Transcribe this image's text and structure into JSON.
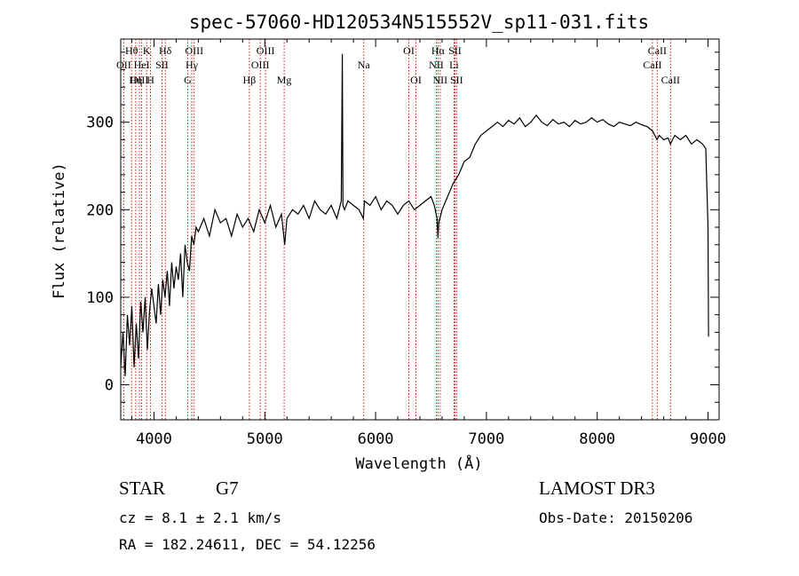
{
  "chart_data": {
    "type": "line",
    "title": "spec-57060-HD120534N515552V_sp11-031.fits",
    "xlabel": "Wavelength (Å)",
    "ylabel": "Flux (relative)",
    "xlim": [
      3700,
      9100
    ],
    "ylim": [
      -40,
      395
    ],
    "xticks": [
      4000,
      5000,
      6000,
      7000,
      8000,
      9000
    ],
    "yticks": [
      0,
      100,
      200,
      300
    ],
    "series": [
      {
        "name": "flux",
        "x": [
          3700,
          3720,
          3740,
          3760,
          3780,
          3800,
          3820,
          3840,
          3860,
          3880,
          3900,
          3920,
          3940,
          3960,
          3980,
          4000,
          4020,
          4040,
          4060,
          4080,
          4100,
          4120,
          4140,
          4160,
          4180,
          4200,
          4220,
          4240,
          4260,
          4280,
          4300,
          4320,
          4340,
          4360,
          4380,
          4400,
          4450,
          4500,
          4550,
          4600,
          4650,
          4700,
          4750,
          4800,
          4850,
          4900,
          4950,
          5000,
          5050,
          5100,
          5150,
          5180,
          5200,
          5250,
          5300,
          5350,
          5400,
          5450,
          5500,
          5550,
          5600,
          5650,
          5690,
          5700,
          5705,
          5720,
          5750,
          5800,
          5850,
          5890,
          5900,
          5950,
          6000,
          6050,
          6100,
          6150,
          6200,
          6250,
          6300,
          6350,
          6400,
          6450,
          6500,
          6530,
          6555,
          6563,
          6570,
          6600,
          6650,
          6700,
          6750,
          6800,
          6850,
          6900,
          6950,
          7000,
          7050,
          7100,
          7150,
          7200,
          7250,
          7300,
          7350,
          7400,
          7450,
          7500,
          7550,
          7600,
          7650,
          7700,
          7750,
          7800,
          7850,
          7900,
          7950,
          8000,
          8050,
          8100,
          8150,
          8200,
          8250,
          8300,
          8350,
          8400,
          8450,
          8500,
          8540,
          8560,
          8600,
          8640,
          8660,
          8700,
          8750,
          8800,
          8850,
          8900,
          8950,
          8980,
          9000,
          9005
        ],
        "y": [
          20,
          60,
          10,
          80,
          45,
          90,
          20,
          70,
          30,
          95,
          60,
          100,
          40,
          85,
          110,
          90,
          70,
          115,
          80,
          120,
          100,
          130,
          90,
          140,
          110,
          135,
          120,
          150,
          100,
          160,
          140,
          130,
          170,
          160,
          180,
          175,
          190,
          170,
          200,
          185,
          190,
          170,
          195,
          180,
          190,
          175,
          200,
          185,
          205,
          180,
          195,
          160,
          190,
          200,
          195,
          205,
          190,
          210,
          200,
          195,
          205,
          190,
          210,
          378,
          205,
          200,
          210,
          205,
          200,
          190,
          210,
          205,
          215,
          200,
          210,
          205,
          195,
          205,
          210,
          200,
          205,
          210,
          215,
          205,
          190,
          168,
          185,
          200,
          215,
          230,
          240,
          255,
          260,
          275,
          285,
          290,
          295,
          300,
          295,
          302,
          298,
          305,
          295,
          300,
          308,
          300,
          296,
          303,
          298,
          300,
          295,
          302,
          298,
          300,
          305,
          300,
          303,
          298,
          295,
          300,
          298,
          296,
          300,
          297,
          295,
          290,
          280,
          285,
          280,
          282,
          275,
          285,
          280,
          285,
          275,
          280,
          275,
          270,
          180,
          55
        ]
      }
    ],
    "spectral_lines": [
      {
        "label": "Hθ",
        "x": 3798,
        "row": 1
      },
      {
        "label": "OII",
        "x": 3727,
        "row": 2
      },
      {
        "label": "OIII",
        "x": 3869,
        "row": 3
      },
      {
        "label": "HeI",
        "x": 3889,
        "row": 2
      },
      {
        "label": "Hη",
        "x": 3835,
        "row": 3
      },
      {
        "label": "K",
        "x": 3934,
        "row": 1
      },
      {
        "label": "H",
        "x": 3969,
        "row": 3
      },
      {
        "label": "SII",
        "x": 4072,
        "row": 2
      },
      {
        "label": "Hδ",
        "x": 4102,
        "row": 1
      },
      {
        "label": "OIII",
        "x": 4363,
        "row": 1
      },
      {
        "label": "Hγ",
        "x": 4341,
        "row": 2
      },
      {
        "label": "G",
        "x": 4305,
        "row": 3
      },
      {
        "label": "Hβ",
        "x": 4861,
        "row": 3
      },
      {
        "label": "OIII",
        "x": 4959,
        "row": 2
      },
      {
        "label": "OIII",
        "x": 5007,
        "row": 1
      },
      {
        "label": "Mg",
        "x": 5175,
        "row": 3
      },
      {
        "label": "Na",
        "x": 5893,
        "row": 2
      },
      {
        "label": "OI",
        "x": 6300,
        "row": 1
      },
      {
        "label": "OI",
        "x": 6364,
        "row": 3
      },
      {
        "label": "NII",
        "x": 6548,
        "row": 2
      },
      {
        "label": "Hα",
        "x": 6563,
        "row": 1
      },
      {
        "label": "NII",
        "x": 6583,
        "row": 3
      },
      {
        "label": "SII",
        "x": 6716,
        "row": 1
      },
      {
        "label": "Li",
        "x": 6708,
        "row": 2
      },
      {
        "label": "SII",
        "x": 6731,
        "row": 3
      },
      {
        "label": "CaII",
        "x": 8542,
        "row": 1
      },
      {
        "label": "CaII",
        "x": 8498,
        "row": 2
      },
      {
        "label": "CaII",
        "x": 8662,
        "row": 3
      }
    ]
  },
  "info": {
    "class_label": "STAR",
    "subclass": "G7",
    "survey": "LAMOST DR3",
    "cz": "cz = 8.1 ± 2.1 km/s",
    "obs_date": "Obs-Date: 20150206",
    "coords": "RA = 182.24611, DEC =  54.12256"
  },
  "colors": {
    "axis": "#000000",
    "line": "#000000",
    "marker": "#cc0000"
  }
}
